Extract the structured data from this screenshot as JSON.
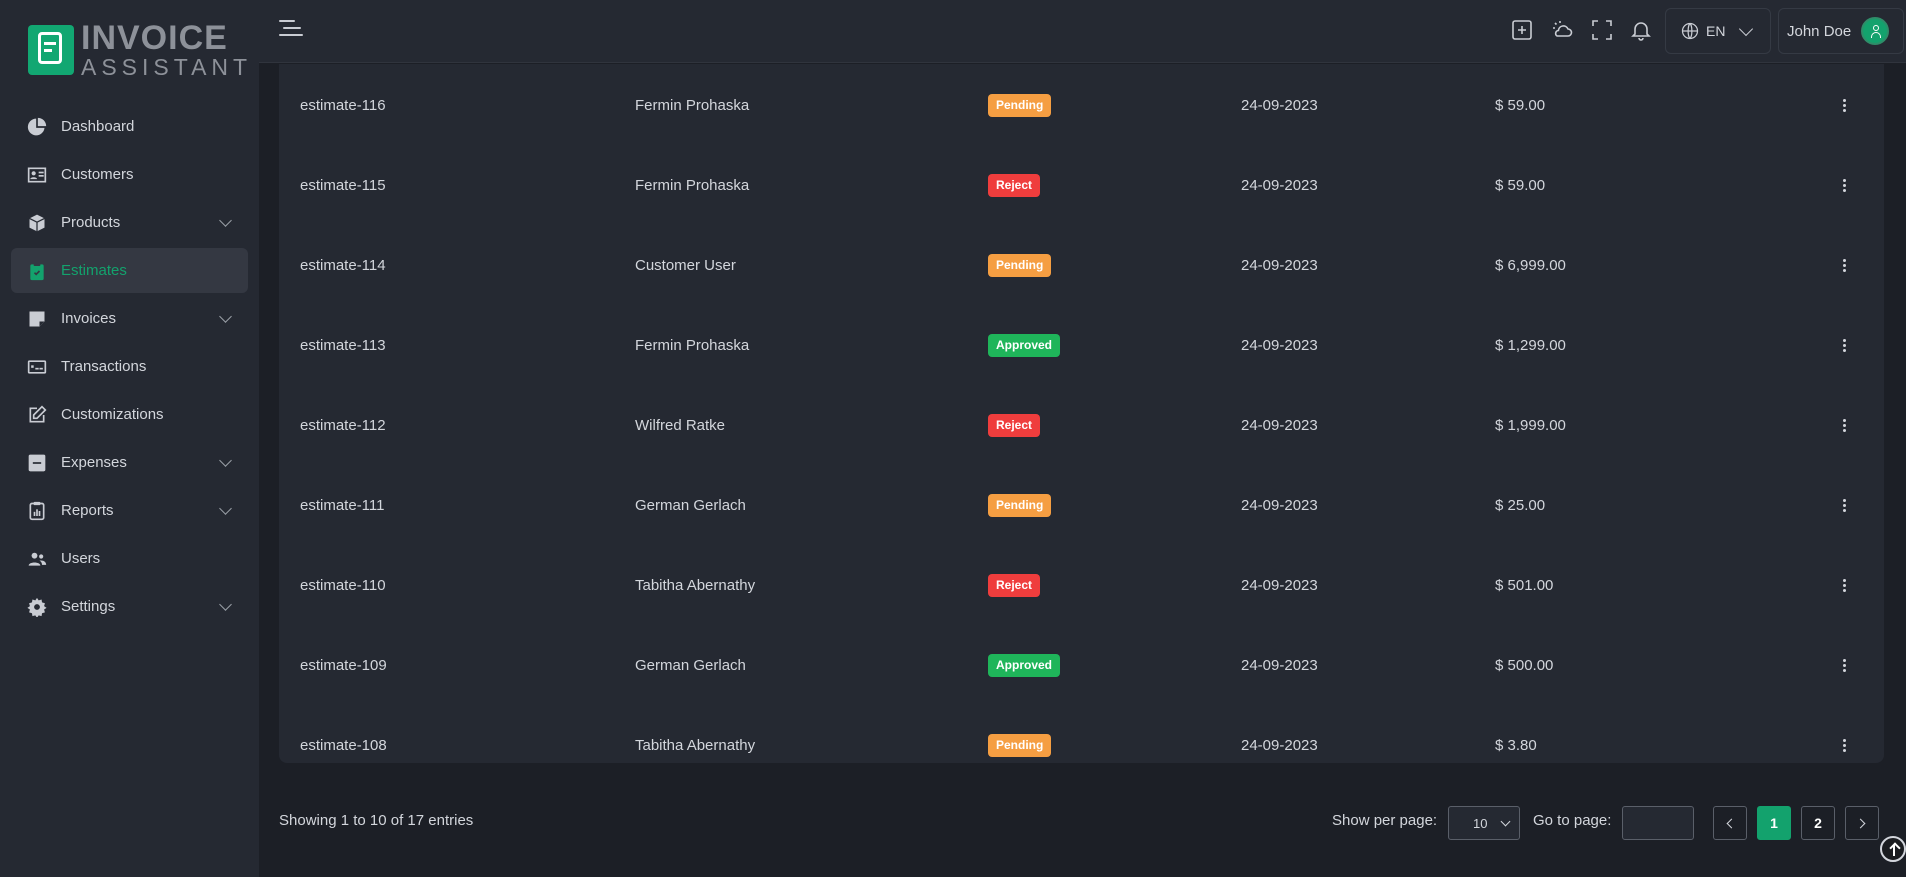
{
  "app": {
    "logo_line1": "INVOICE",
    "logo_line2": "ASSISTANT",
    "accent_color": "#13a26d"
  },
  "sidebar": {
    "items": [
      {
        "label": "Dashboard",
        "icon": "pie-chart-icon",
        "has_submenu": false,
        "active": false
      },
      {
        "label": "Customers",
        "icon": "id-card-icon",
        "has_submenu": false,
        "active": false
      },
      {
        "label": "Products",
        "icon": "box-icon",
        "has_submenu": true,
        "active": false
      },
      {
        "label": "Estimates",
        "icon": "clipboard-icon",
        "has_submenu": false,
        "active": true
      },
      {
        "label": "Invoices",
        "icon": "invoice-icon",
        "has_submenu": true,
        "active": false
      },
      {
        "label": "Transactions",
        "icon": "money-icon",
        "has_submenu": false,
        "active": false
      },
      {
        "label": "Customizations",
        "icon": "edit-icon",
        "has_submenu": false,
        "active": false
      },
      {
        "label": "Expenses",
        "icon": "minus-square-icon",
        "has_submenu": true,
        "active": false
      },
      {
        "label": "Reports",
        "icon": "report-icon",
        "has_submenu": true,
        "active": false
      },
      {
        "label": "Users",
        "icon": "users-icon",
        "has_submenu": false,
        "active": false
      },
      {
        "label": "Settings",
        "icon": "gear-icon",
        "has_submenu": true,
        "active": false
      }
    ]
  },
  "topbar": {
    "icons": [
      "hamburger-icon",
      "add-icon",
      "theme-icon",
      "fullscreen-icon",
      "bell-icon"
    ],
    "language": "EN",
    "user_name": "John Doe"
  },
  "table": {
    "rows": [
      {
        "number": "estimate-116",
        "customer": "Fermin Prohaska",
        "status": "Pending",
        "status_color": "#f59e42",
        "date": "24-09-2023",
        "amount": "$ 59.00"
      },
      {
        "number": "estimate-115",
        "customer": "Fermin Prohaska",
        "status": "Reject",
        "status_color": "#ef3d3d",
        "date": "24-09-2023",
        "amount": "$ 59.00"
      },
      {
        "number": "estimate-114",
        "customer": "Customer User",
        "status": "Pending",
        "status_color": "#f59e42",
        "date": "24-09-2023",
        "amount": "$ 6,999.00"
      },
      {
        "number": "estimate-113",
        "customer": "Fermin Prohaska",
        "status": "Approved",
        "status_color": "#1fb55a",
        "date": "24-09-2023",
        "amount": "$ 1,299.00"
      },
      {
        "number": "estimate-112",
        "customer": "Wilfred Ratke",
        "status": "Reject",
        "status_color": "#ef3d3d",
        "date": "24-09-2023",
        "amount": "$ 1,999.00"
      },
      {
        "number": "estimate-111",
        "customer": "German Gerlach",
        "status": "Pending",
        "status_color": "#f59e42",
        "date": "24-09-2023",
        "amount": "$ 25.00"
      },
      {
        "number": "estimate-110",
        "customer": "Tabitha Abernathy",
        "status": "Reject",
        "status_color": "#ef3d3d",
        "date": "24-09-2023",
        "amount": "$ 501.00"
      },
      {
        "number": "estimate-109",
        "customer": "German Gerlach",
        "status": "Approved",
        "status_color": "#1fb55a",
        "date": "24-09-2023",
        "amount": "$ 500.00"
      },
      {
        "number": "estimate-108",
        "customer": "Tabitha Abernathy",
        "status": "Pending",
        "status_color": "#f59e42",
        "date": "24-09-2023",
        "amount": "$ 3.80"
      }
    ]
  },
  "footer": {
    "showing_text": "Showing 1 to 10 of 17 entries",
    "per_page_label": "Show per page:",
    "per_page_value": "10",
    "goto_label": "Go to page:",
    "goto_value": "",
    "pages": [
      "1",
      "2"
    ],
    "current_page": "1"
  }
}
